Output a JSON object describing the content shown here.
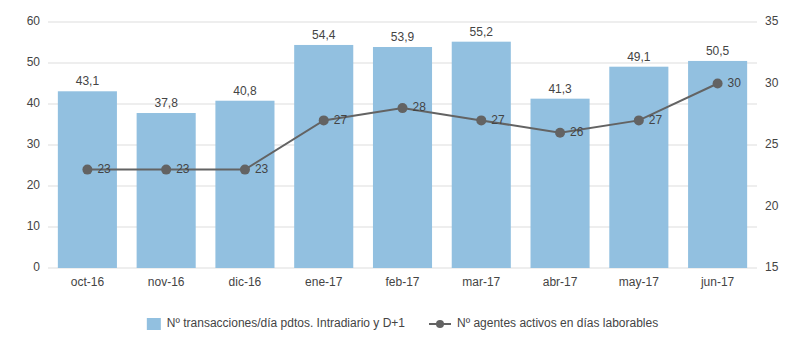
{
  "chart_data": {
    "type": "bar",
    "categories": [
      "oct-16",
      "nov-16",
      "dic-16",
      "ene-17",
      "feb-17",
      "mar-17",
      "abr-17",
      "may-17",
      "jun-17"
    ],
    "series": [
      {
        "name": "Nº transacciones/día pdtos. Intradiario y D+1",
        "type": "bar",
        "color": "#92C0E0",
        "values": [
          43.1,
          37.8,
          40.8,
          54.4,
          53.9,
          55.2,
          41.3,
          49.1,
          50.5
        ],
        "value_labels": [
          "43,1",
          "37,8",
          "40,8",
          "54,4",
          "53,9",
          "55,2",
          "41,3",
          "49,1",
          "50,5"
        ]
      },
      {
        "name": "Nº agentes activos en días laborables",
        "type": "line",
        "axis": "y2",
        "color": "#636363",
        "marker": "circle",
        "values": [
          23,
          23,
          23,
          27,
          28,
          27,
          26,
          27,
          30
        ]
      }
    ],
    "ylim": [
      0,
      60
    ],
    "yticks": [
      0,
      10,
      20,
      30,
      40,
      50,
      60
    ],
    "y2lim": [
      15,
      35
    ],
    "y2ticks": [
      15,
      20,
      25,
      30,
      35
    ],
    "grid": true,
    "data_labels": true,
    "legend": "bottom"
  }
}
